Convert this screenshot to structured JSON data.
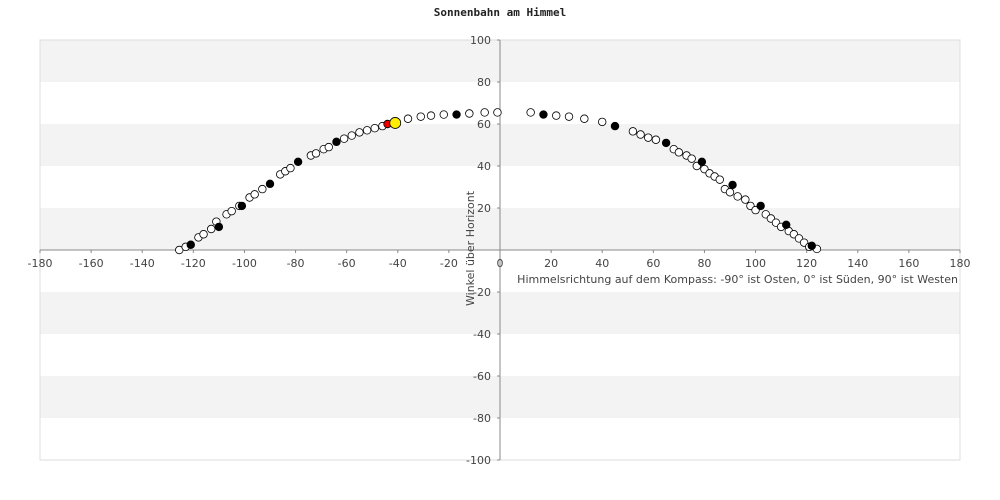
{
  "chart_data": {
    "type": "scatter",
    "title": "Sonnenbahn am Himmel",
    "xlabel": "Himmelsrichtung auf dem Kompass: -90° ist Osten, 0° ist Süden, 90° ist Westen",
    "ylabel": "Winkel über Horizont",
    "xlim": [
      -180,
      180
    ],
    "ylim": [
      -100,
      100
    ],
    "xticks": [
      "-180",
      "-160",
      "-140",
      "-120",
      "-100",
      "-80",
      "-60",
      "-40",
      "-20",
      "0",
      "20",
      "40",
      "60",
      "80",
      "100",
      "120",
      "140",
      "160",
      "180"
    ],
    "yticks": [
      "-100",
      "-80",
      "-60",
      "-40",
      "-20",
      "0",
      "20",
      "40",
      "60",
      "80",
      "100"
    ],
    "grid": "horizontal-bands",
    "series": [
      {
        "marker": "open-circle",
        "color": "#ffffff",
        "x": [
          -125.5,
          -123,
          -118,
          -116,
          -113,
          -111,
          -107,
          -105,
          -102,
          -98,
          -96,
          -93,
          -86,
          -84,
          -82,
          -74,
          -72,
          -69,
          -67,
          -61,
          -58,
          -55,
          -52,
          -49,
          -46,
          -36,
          -31,
          -27,
          -22,
          -12,
          -6,
          -1,
          12,
          22,
          27,
          33,
          40,
          52,
          55,
          58,
          61,
          68,
          70,
          73,
          75,
          77,
          80,
          82,
          84,
          86,
          88,
          90,
          93,
          96,
          98,
          100,
          104,
          106,
          108,
          110,
          113,
          115,
          117,
          119,
          121,
          124
        ],
        "y": [
          0,
          1.5,
          6,
          7.5,
          10,
          13.5,
          17,
          18.5,
          21,
          25,
          26.5,
          29,
          36,
          37.5,
          39,
          45,
          46,
          48,
          49,
          53,
          54.5,
          56,
          57,
          58,
          59,
          62.5,
          63.5,
          64,
          64.5,
          65,
          65.5,
          65.5,
          65.5,
          64,
          63.5,
          62.5,
          61,
          56.5,
          55,
          53.5,
          52.5,
          48,
          46.5,
          45,
          43.5,
          40,
          38.5,
          36.5,
          35,
          33.5,
          29,
          27.5,
          25.5,
          24,
          21,
          19,
          17,
          15,
          13,
          11,
          9,
          7.5,
          5.5,
          3.5,
          1.5,
          0.5
        ]
      },
      {
        "marker": "filled-circle",
        "color": "#000000",
        "x": [
          -121,
          -110,
          -101,
          -90,
          -79,
          -64,
          -17,
          17,
          45,
          65,
          79,
          91,
          102,
          112,
          122
        ],
        "y": [
          2.5,
          11,
          21,
          31.5,
          42,
          51.5,
          64.5,
          64.5,
          59,
          51,
          42,
          31,
          21,
          12,
          2
        ]
      },
      {
        "marker": "filled-circle",
        "color": "#ee0000",
        "x": [
          -44
        ],
        "y": [
          60
        ]
      },
      {
        "marker": "filled-circle",
        "color": "#ffee00",
        "x": [
          -41
        ],
        "y": [
          60.5
        ]
      }
    ]
  }
}
